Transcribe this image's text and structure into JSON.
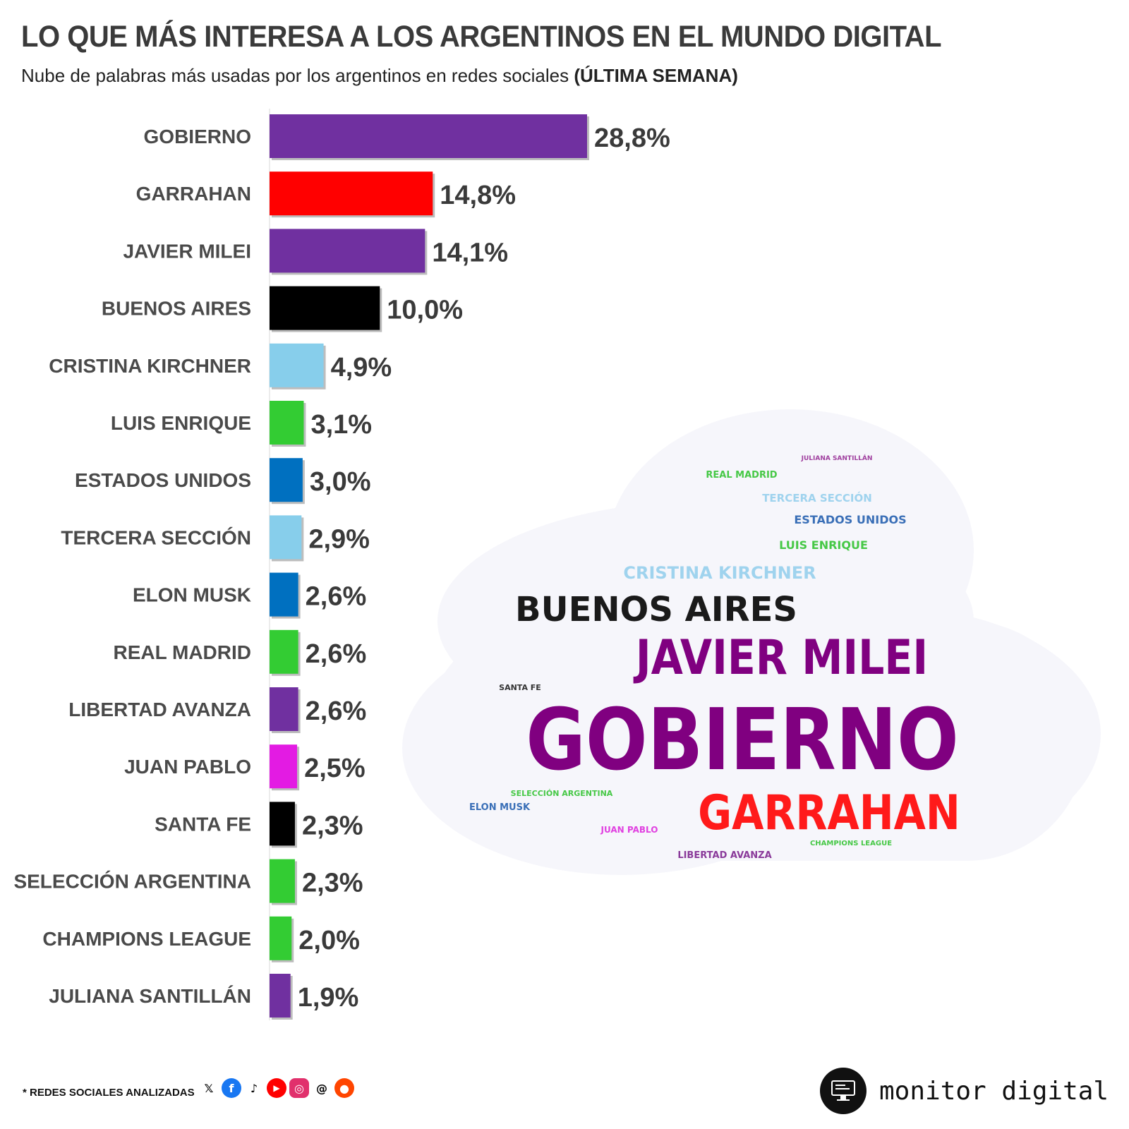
{
  "title": "LO QUE MÁS INTERESA A LOS ARGENTINOS EN EL MUNDO DIGITAL",
  "subtitle": {
    "text": "Nube de palabras más usadas por los argentinos en redes sociales ",
    "bold": "(ÚLTIMA SEMANA)"
  },
  "chart_data": {
    "type": "bar",
    "orientation": "horizontal",
    "categories": [
      "GOBIERNO",
      "GARRAHAN",
      "JAVIER MILEI",
      "BUENOS AIRES",
      "CRISTINA KIRCHNER",
      "LUIS ENRIQUE",
      "ESTADOS UNIDOS",
      "TERCERA SECCIÓN",
      "ELON MUSK",
      "REAL MADRID",
      "LIBERTAD AVANZA",
      "JUAN PABLO",
      "SANTA FE",
      "SELECCIÓN ARGENTINA",
      "CHAMPIONS LEAGUE",
      "JULIANA SANTILLÁN"
    ],
    "values": [
      28.8,
      14.8,
      14.1,
      10.0,
      4.9,
      3.1,
      3.0,
      2.9,
      2.6,
      2.6,
      2.6,
      2.5,
      2.3,
      2.3,
      2.0,
      1.9
    ],
    "value_labels": [
      "28,8%",
      "14,8%",
      "14,1%",
      "10,0%",
      "4,9%",
      "3,1%",
      "3,0%",
      "2,9%",
      "2,6%",
      "2,6%",
      "2,6%",
      "2,5%",
      "2,3%",
      "2,3%",
      "2,0%",
      "1,9%"
    ],
    "colors": [
      "#7030a0",
      "#ff0000",
      "#7030a0",
      "#000000",
      "#87ceeb",
      "#33cc33",
      "#0070c0",
      "#87ceeb",
      "#0070c0",
      "#33cc33",
      "#7030a0",
      "#e31be3",
      "#000000",
      "#33cc33",
      "#33cc33",
      "#7030a0"
    ],
    "xlim": [
      0,
      28.8
    ],
    "grid": false,
    "legend": "none"
  },
  "word_cloud": [
    {
      "text": "GOBIERNO",
      "color": "#800080"
    },
    {
      "text": "JAVIER MILEI",
      "color": "#800080"
    },
    {
      "text": "GARRAHAN",
      "color": "#ff1a1a"
    },
    {
      "text": "BUENOS AIRES",
      "color": "#1a1a1a"
    },
    {
      "text": "CRISTINA KIRCHNER",
      "color": "#9fd3ee"
    },
    {
      "text": "LUIS ENRIQUE",
      "color": "#46c846"
    },
    {
      "text": "ESTADOS UNIDOS",
      "color": "#3a6fb7"
    },
    {
      "text": "TERCERA SECCIÓN",
      "color": "#9fd3ee"
    },
    {
      "text": "REAL MADRID",
      "color": "#46c846"
    },
    {
      "text": "JULIANA SANTILLÁN",
      "color": "#a0409f"
    },
    {
      "text": "SANTA FE",
      "color": "#333333"
    },
    {
      "text": "SELECCIÓN ARGENTINA",
      "color": "#46c846"
    },
    {
      "text": "ELON MUSK",
      "color": "#3a6fb7"
    },
    {
      "text": "JUAN PABLO",
      "color": "#e040e0"
    },
    {
      "text": "CHAMPIONS LEAGUE",
      "color": "#46c846"
    },
    {
      "text": "LIBERTAD AVANZA",
      "color": "#8a3a9a"
    }
  ],
  "footer": {
    "note": "* REDES SOCIALES ANALIZADAS",
    "social_icons": [
      "x-icon",
      "facebook-icon",
      "tiktok-icon",
      "youtube-icon",
      "instagram-icon",
      "threads-icon",
      "reddit-icon"
    ],
    "brand": "monitor digital"
  }
}
